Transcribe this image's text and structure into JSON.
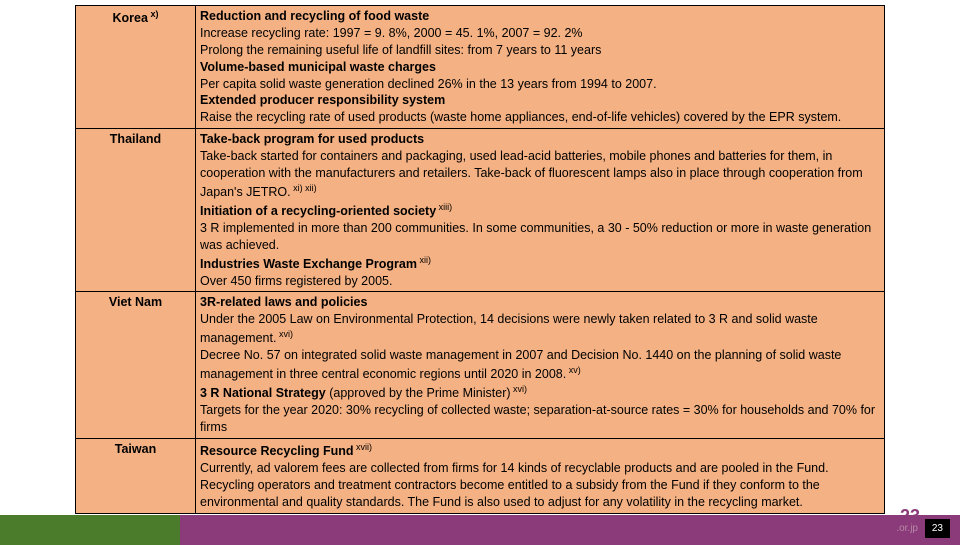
{
  "colors": {
    "cell_bg": "#f4b183",
    "border": "#000000",
    "bar_green": "#4a7c2c",
    "bar_purple": "#8b3a7a",
    "page_badge_bg": "#000000",
    "page_badge_fg": "#ffffff",
    "page_big_fg": "#8b3a7a"
  },
  "page_number_big": "23",
  "page_number_badge": "23",
  "bar_right_text": ".or.jp",
  "rows": [
    {
      "country": "Korea",
      "country_sup": "x)",
      "lines": [
        {
          "bold": true,
          "text": "Reduction and recycling of food waste"
        },
        {
          "bold": false,
          "text": "Increase recycling rate: 1997 = 9. 8%, 2000 = 45. 1%, 2007 = 92. 2%"
        },
        {
          "bold": false,
          "text": "Prolong the remaining useful life of landfill sites: from 7 years to 11 years"
        },
        {
          "bold": true,
          "text": "Volume-based municipal waste charges"
        },
        {
          "bold": false,
          "text": "Per capita solid waste generation declined 26% in the 13 years from 1994 to 2007."
        },
        {
          "bold": true,
          "text": "Extended producer responsibility system"
        },
        {
          "bold": false,
          "text": "Raise the recycling rate of used products (waste home appliances, end-of-life vehicles) covered by the EPR system."
        }
      ]
    },
    {
      "country": "Thailand",
      "country_sup": "",
      "lines": [
        {
          "bold": true,
          "text": "Take-back program for used products"
        },
        {
          "bold": false,
          "text": "Take-back started for containers and packaging, used lead-acid batteries, mobile phones and batteries for them, in cooperation with the manufacturers and retailers.",
          "sup": "xi)",
          "tail": " Take-back of fluorescent lamps also in place through cooperation from Japan's JETRO.",
          "sup2": "xii)"
        },
        {
          "bold": true,
          "text": "Initiation of a recycling-oriented society",
          "sup": "xiii)"
        },
        {
          "bold": false,
          "text": "3 R implemented in more than 200 communities. In some communities, a 30 - 50% reduction or more in waste generation was achieved."
        },
        {
          "bold": true,
          "text": "Industries Waste Exchange Program",
          "sup": "xii)"
        },
        {
          "bold": false,
          "text": "Over 450 firms registered by 2005."
        }
      ]
    },
    {
      "country": "Viet Nam",
      "country_sup": "",
      "lines": [
        {
          "bold": true,
          "text": "3R-related laws and policies"
        },
        {
          "bold": false,
          "text": "Under the 2005 Law on Environmental Protection, 14 decisions were newly taken related to 3 R and solid waste management.",
          "sup": "xvi)"
        },
        {
          "bold": false,
          "text": "Decree No. 57 on integrated solid waste management in 2007 and Decision No. 1440 on the planning of solid waste management in three central economic regions until 2020 in 2008.",
          "sup": "xv)"
        },
        {
          "bold": true,
          "text": "3 R National Strategy",
          "tail": " (approved by the Prime Minister)",
          "sup": "xvi)"
        },
        {
          "bold": false,
          "text": "Targets for the year 2020: 30% recycling of collected waste; separation-at-source rates = 30% for households and 70% for firms"
        }
      ]
    },
    {
      "country": "Taiwan",
      "country_sup": "",
      "lines": [
        {
          "bold": true,
          "text": "Resource Recycling Fund",
          "sup": "xvii)"
        },
        {
          "bold": false,
          "text": "Currently, ad valorem fees are collected from firms for 14 kinds of recyclable products and are pooled in the Fund. Recycling operators and treatment contractors become entitled to a subsidy from the Fund if they conform to the environmental and quality standards. The Fund is also used to adjust for any volatility in the recycling market."
        }
      ]
    }
  ]
}
